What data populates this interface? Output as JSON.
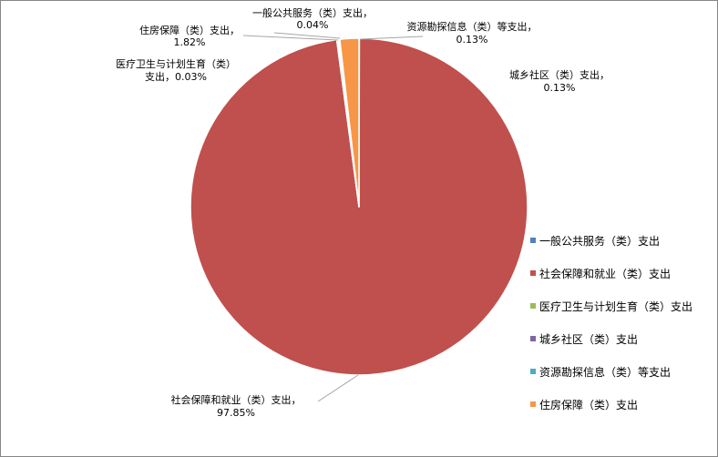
{
  "chart_data": {
    "type": "pie",
    "title": "",
    "legend_position": "right",
    "slices": [
      {
        "name": "一般公共服务（类）支出",
        "value": 0.04,
        "pct_label": "0.04%",
        "color": "#4f81bd"
      },
      {
        "name": "社会保障和就业（类）支出",
        "value": 97.85,
        "pct_label": "97.85%",
        "color": "#c0504d"
      },
      {
        "name": "医疗卫生与计划生育（类）支出",
        "value": 0.03,
        "pct_label": "0.03%",
        "color": "#9bbb59"
      },
      {
        "name": "城乡社区（类）支出",
        "value": 0.13,
        "pct_label": "0.13%",
        "color": "#8064a2"
      },
      {
        "name": "资源勘探信息（类）等支出",
        "value": 0.13,
        "pct_label": "0.13%",
        "color": "#4bacc6"
      },
      {
        "name": "住房保障（类）支出",
        "value": 1.82,
        "pct_label": "1.82%",
        "color": "#f79646"
      }
    ],
    "labels": [
      {
        "name_text": "一般公共服务（类）支出，",
        "pct_text": "0.04%"
      },
      {
        "name_text": "社会保障和就业（类）支出，",
        "pct_text": "97.85%"
      },
      {
        "name_text": "医疗卫生与计划生育（类）",
        "pct_text": "支出，0.03%"
      },
      {
        "name_text": "城乡社区（类）支出，",
        "pct_text": "0.13%"
      },
      {
        "name_text": "资源勘探信息（类）等支出，",
        "pct_text": "0.13%"
      },
      {
        "name_text": "住房保障（类）支出，",
        "pct_text": "1.82%"
      }
    ]
  }
}
